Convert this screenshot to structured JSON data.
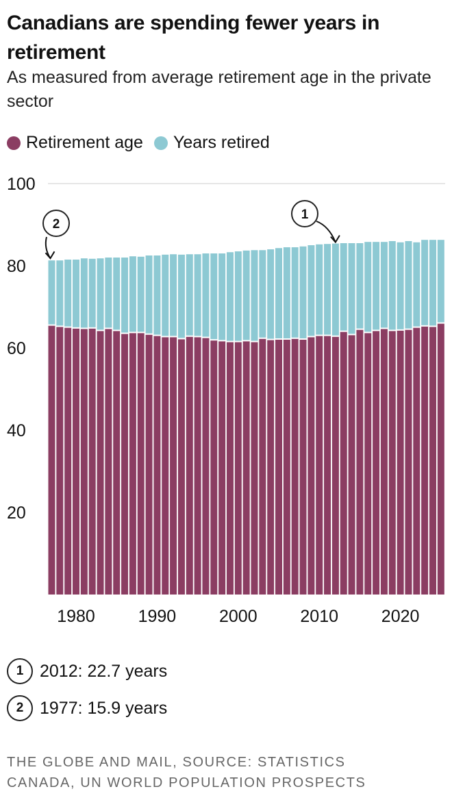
{
  "title": "Canadians are spending fewer years in retirement",
  "subtitle": "As measured from average retirement age in the private sector",
  "colors": {
    "retirement_age": "#8B3D62",
    "years_retired": "#8DC9D3"
  },
  "chart_data": {
    "type": "bar",
    "stacked": true,
    "legend_position": "top-left",
    "grid": "top line only",
    "ylim": [
      0,
      100
    ],
    "y_ticks": [
      "20",
      "40",
      "60",
      "80",
      "100"
    ],
    "x_ticks": [
      "1980",
      "1990",
      "2000",
      "2010",
      "2020"
    ],
    "categories": [
      1977,
      1978,
      1979,
      1980,
      1981,
      1982,
      1983,
      1984,
      1985,
      1986,
      1987,
      1988,
      1989,
      1990,
      1991,
      1992,
      1993,
      1994,
      1995,
      1996,
      1997,
      1998,
      1999,
      2000,
      2001,
      2002,
      2003,
      2004,
      2005,
      2006,
      2007,
      2008,
      2009,
      2010,
      2011,
      2012,
      2013,
      2014,
      2015,
      2016,
      2017,
      2018,
      2019,
      2020,
      2021,
      2022,
      2023,
      2024,
      2025
    ],
    "series": [
      {
        "name": "Retirement age",
        "values": [
          65.4,
          65.1,
          64.9,
          64.7,
          64.6,
          64.7,
          64.1,
          64.6,
          64.1,
          63.4,
          63.6,
          63.6,
          63.2,
          62.9,
          62.6,
          62.6,
          62.1,
          62.7,
          62.6,
          62.4,
          61.8,
          61.6,
          61.4,
          61.4,
          61.6,
          61.4,
          62.2,
          61.9,
          62.0,
          62.0,
          62.2,
          62.0,
          62.6,
          62.9,
          62.9,
          62.7,
          63.9,
          63.1,
          64.4,
          63.6,
          64.1,
          64.6,
          64.1,
          64.2,
          64.4,
          64.9,
          65.2,
          65.1,
          65.9
        ]
      },
      {
        "name": "Years retired",
        "values": [
          15.9,
          16.2,
          16.6,
          16.8,
          17.2,
          17.0,
          17.7,
          17.4,
          17.9,
          18.6,
          18.7,
          18.6,
          19.3,
          19.6,
          20.1,
          20.2,
          20.6,
          20.1,
          20.2,
          20.6,
          21.2,
          21.4,
          21.9,
          22.1,
          22.1,
          22.4,
          21.6,
          22.1,
          22.3,
          22.5,
          22.3,
          22.7,
          22.4,
          22.3,
          22.4,
          22.7,
          21.6,
          22.4,
          21.1,
          22.2,
          21.7,
          21.2,
          21.9,
          21.5,
          21.6,
          20.8,
          21.1,
          21.2,
          20.4
        ]
      }
    ],
    "annotations": [
      {
        "marker": "1",
        "year": 2012,
        "text": "2012: 22.7 years"
      },
      {
        "marker": "2",
        "year": 1977,
        "text": "1977: 15.9 years"
      }
    ]
  },
  "legend": {
    "retirement_age": "Retirement age",
    "years_retired": "Years retired"
  },
  "footer": "THE GLOBE AND MAIL, SOURCE: STATISTICS CANADA, UN WORLD POPULATION PROSPECTS"
}
